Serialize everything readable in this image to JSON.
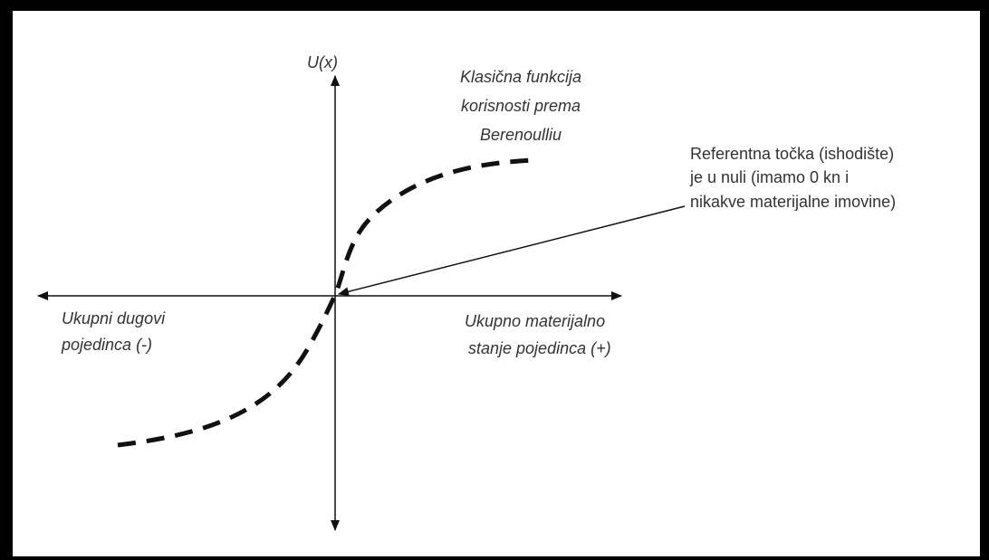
{
  "y_axis_label": "U(x)",
  "curve_label": [
    "Klasična funkcija",
    "korisnosti prema",
    "Berenoulliu"
  ],
  "reference_note": [
    "Referentna točka (ishodište)",
    "je u nuli (imamo 0 kn i",
    "nikakve materijalne imovine)"
  ],
  "negative_x_label": [
    "Ukupni dugovi",
    "pojedinca (-)"
  ],
  "positive_x_label": [
    "Ukupno materijalno",
    "stanje pojedinca (+)"
  ]
}
